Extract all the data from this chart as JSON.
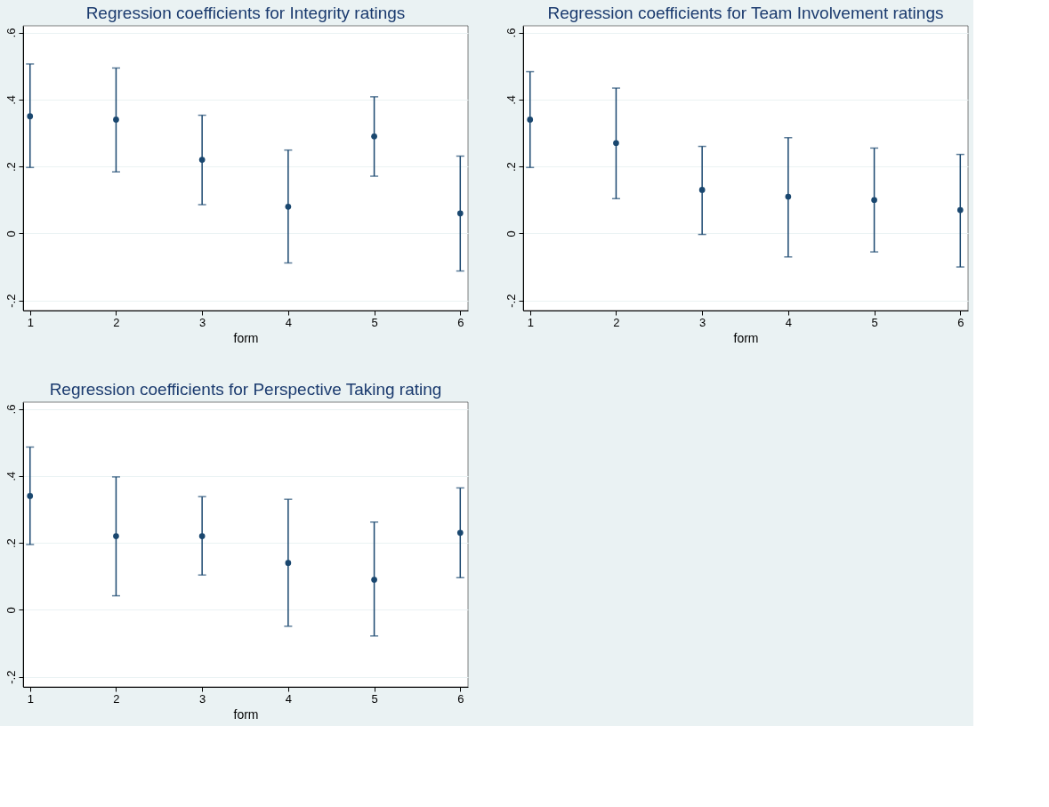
{
  "chart_data": [
    {
      "type": "scatter",
      "title": "Regression coefficients for Integrity ratings",
      "xlabel": "form",
      "color": "#1a476f",
      "marker": "circle",
      "grid": "y",
      "x": [
        1,
        2,
        3,
        4,
        5,
        6
      ],
      "values": [
        0.35,
        0.34,
        0.22,
        0.08,
        0.29,
        0.06
      ],
      "errors": [
        [
          0.197,
          0.506
        ],
        [
          0.184,
          0.494
        ],
        [
          0.086,
          0.353
        ],
        [
          -0.088,
          0.249
        ],
        [
          0.171,
          0.408
        ],
        [
          -0.112,
          0.231
        ]
      ],
      "xlim": [
        0.92,
        6.09
      ],
      "ylim": [
        -0.23,
        0.62
      ],
      "xticks": [
        1,
        2,
        3,
        4,
        5,
        6
      ],
      "yticks": [
        {
          "value": -0.2,
          "label": "-.2"
        },
        0,
        {
          "value": 0.2,
          "label": ".2"
        },
        {
          "value": 0.4,
          "label": ".4"
        },
        {
          "value": 0.6,
          "label": ".6"
        }
      ]
    },
    {
      "type": "scatter",
      "title": "Regression coefficients for Team Involvement ratings",
      "xlabel": "form",
      "color": "#1a476f",
      "marker": "circle",
      "grid": "y",
      "x": [
        1,
        2,
        3,
        4,
        5,
        6
      ],
      "values": [
        0.34,
        0.27,
        0.13,
        0.11,
        0.1,
        0.07
      ],
      "errors": [
        [
          0.197,
          0.483
        ],
        [
          0.104,
          0.434
        ],
        [
          -0.003,
          0.26
        ],
        [
          -0.07,
          0.286
        ],
        [
          -0.055,
          0.255
        ],
        [
          -0.1,
          0.236
        ]
      ],
      "xlim": [
        0.92,
        6.09
      ],
      "ylim": [
        -0.23,
        0.62
      ],
      "xticks": [
        1,
        2,
        3,
        4,
        5,
        6
      ],
      "yticks": [
        {
          "value": -0.2,
          "label": "-.2"
        },
        0,
        {
          "value": 0.2,
          "label": ".2"
        },
        {
          "value": 0.4,
          "label": ".4"
        },
        {
          "value": 0.6,
          "label": ".6"
        }
      ]
    },
    {
      "type": "scatter",
      "title": "Regression coefficients for Perspective Taking rating",
      "xlabel": "form",
      "color": "#1a476f",
      "marker": "circle",
      "grid": "y",
      "x": [
        1,
        2,
        3,
        4,
        5,
        6
      ],
      "values": [
        0.34,
        0.22,
        0.22,
        0.14,
        0.09,
        0.23
      ],
      "errors": [
        [
          0.195,
          0.486
        ],
        [
          0.042,
          0.397
        ],
        [
          0.104,
          0.338
        ],
        [
          -0.049,
          0.33
        ],
        [
          -0.078,
          0.262
        ],
        [
          0.096,
          0.364
        ]
      ],
      "xlim": [
        0.92,
        6.09
      ],
      "ylim": [
        -0.23,
        0.62
      ],
      "xticks": [
        1,
        2,
        3,
        4,
        5,
        6
      ],
      "yticks": [
        {
          "value": -0.2,
          "label": "-.2"
        },
        0,
        {
          "value": 0.2,
          "label": ".2"
        },
        {
          "value": 0.4,
          "label": ".4"
        },
        {
          "value": 0.6,
          "label": ".6"
        }
      ]
    }
  ]
}
